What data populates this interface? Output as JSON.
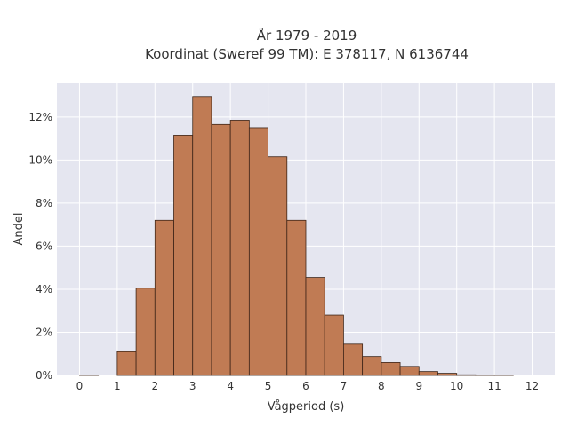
{
  "chart_data": {
    "type": "bar",
    "title_line1": "År 1979 - 2019",
    "title_line2": "Koordinat (Sweref 99 TM): E 378117, N 6136744",
    "xlabel": "Vågperiod (s)",
    "ylabel": "Andel",
    "xlim": [
      -0.6,
      12.6
    ],
    "ylim": [
      0,
      13.6
    ],
    "xticks": [
      0,
      1,
      2,
      3,
      4,
      5,
      6,
      7,
      8,
      9,
      10,
      11,
      12
    ],
    "yticks": [
      0,
      2,
      4,
      6,
      8,
      10,
      12
    ],
    "ytick_suffix": "%",
    "grid": true,
    "bin_width": 0.5,
    "bins": [
      {
        "x0": 0.0,
        "value": 0.02
      },
      {
        "x0": 0.5,
        "value": 0.0
      },
      {
        "x0": 1.0,
        "value": 1.1
      },
      {
        "x0": 1.5,
        "value": 4.05
      },
      {
        "x0": 2.0,
        "value": 7.2
      },
      {
        "x0": 2.5,
        "value": 11.15
      },
      {
        "x0": 3.0,
        "value": 12.95
      },
      {
        "x0": 3.5,
        "value": 11.65
      },
      {
        "x0": 4.0,
        "value": 11.85
      },
      {
        "x0": 4.5,
        "value": 11.5
      },
      {
        "x0": 5.0,
        "value": 10.15
      },
      {
        "x0": 5.5,
        "value": 7.2
      },
      {
        "x0": 6.0,
        "value": 4.55
      },
      {
        "x0": 6.5,
        "value": 2.8
      },
      {
        "x0": 7.0,
        "value": 1.45
      },
      {
        "x0": 7.5,
        "value": 0.88
      },
      {
        "x0": 8.0,
        "value": 0.6
      },
      {
        "x0": 8.5,
        "value": 0.42
      },
      {
        "x0": 9.0,
        "value": 0.18
      },
      {
        "x0": 9.5,
        "value": 0.1
      },
      {
        "x0": 10.0,
        "value": 0.03
      },
      {
        "x0": 10.5,
        "value": 0.02
      },
      {
        "x0": 11.0,
        "value": 0.01
      }
    ],
    "colors": {
      "bar_fill": "#c07b54",
      "bar_stroke": "#3d2417",
      "plot_bg": "#e5e6f0",
      "grid": "#ffffff"
    }
  }
}
